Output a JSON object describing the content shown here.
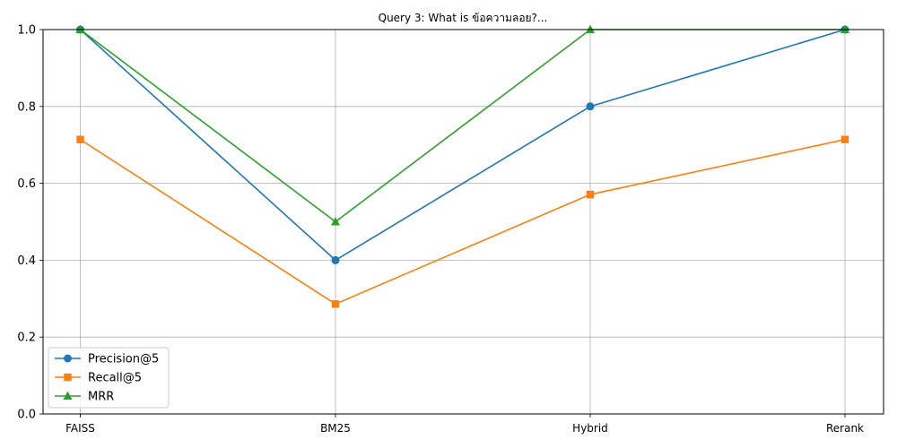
{
  "chart_data": {
    "type": "line",
    "title": "Query 3: What is ข้อความลอย?...",
    "xlabel": "",
    "ylabel": "",
    "categories": [
      "FAISS",
      "BM25",
      "Hybrid",
      "Rerank"
    ],
    "ylim": [
      0,
      1.0
    ],
    "yticks": [
      "0.0",
      "0.2",
      "0.4",
      "0.6",
      "0.8",
      "1.0"
    ],
    "grid": true,
    "legend_position": "lower-left",
    "series": [
      {
        "name": "Precision@5",
        "marker": "circle",
        "color": "#1f77b4",
        "values": [
          1.0,
          0.4,
          0.8,
          1.0
        ]
      },
      {
        "name": "Recall@5",
        "marker": "square",
        "color": "#ff7f0e",
        "values": [
          0.714,
          0.286,
          0.571,
          0.714
        ]
      },
      {
        "name": "MRR",
        "marker": "triangle",
        "color": "#2ca02c",
        "values": [
          1.0,
          0.5,
          1.0,
          1.0
        ]
      }
    ]
  }
}
